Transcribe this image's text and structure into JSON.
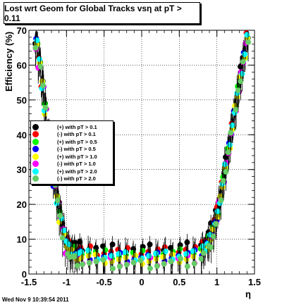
{
  "title": "Lost wrt Geom for Global Tracks vsη at pT > 0.11",
  "date_stamp": "Wed Nov  9 10:39:54 2011",
  "chart_data": {
    "type": "scatter",
    "title": "Lost wrt Geom for Global Tracks vsη at pT > 0.11",
    "xlabel": "η",
    "ylabel": "Efficiency (%)",
    "xlim": [
      -1.5,
      1.5
    ],
    "ylim": [
      0,
      70
    ],
    "grid": true,
    "legend_position": "left",
    "x_ticks": [
      -1.5,
      -1.0,
      -0.5,
      0,
      0.5,
      1.0,
      1.5
    ],
    "x_tick_labels": [
      "-1.5",
      "-1",
      "-0.5",
      "0",
      "0.5",
      "1",
      "1.5"
    ],
    "y_ticks": [
      0,
      10,
      20,
      30,
      40,
      50,
      60,
      70
    ],
    "y_tick_labels": [
      "0",
      "10",
      "20",
      "30",
      "40",
      "50",
      "60",
      "70"
    ],
    "series": [
      {
        "name": "(+) with pT > 0.1",
        "color": "#000000",
        "offset": 0.9,
        "err": 2.4
      },
      {
        "name": "(-) with pT > 0.1",
        "color": "#ff0000",
        "offset": 0.0,
        "err": 2.6
      },
      {
        "name": "(+) with pT > 0.5",
        "color": "#00ff00",
        "offset": -0.8,
        "err": 2.8
      },
      {
        "name": "(-) with pT > 0.5",
        "color": "#0000ff",
        "offset": -1.5,
        "err": 3.0
      },
      {
        "name": "(+) with pT > 1.0",
        "color": "#ffff00",
        "offset": -2.2,
        "err": 3.4
      },
      {
        "name": "(-) with pT > 1.0",
        "color": "#ff00ff",
        "offset": -2.9,
        "err": 3.8
      },
      {
        "name": "(+) with pT > 2.0",
        "color": "#00ffff",
        "offset": -1.2,
        "err": 4.2
      },
      {
        "name": "(-) with pT > 2.0",
        "color": "#66cc66",
        "offset": -3.6,
        "err": 4.6
      }
    ],
    "base_x": [
      -1.4,
      -1.36,
      -1.32,
      -1.28,
      -1.24,
      -1.2,
      -1.16,
      -1.12,
      -1.08,
      -1.04,
      -1.0,
      -0.96,
      -0.92,
      -0.88,
      -0.84,
      -0.8,
      -0.7,
      -0.6,
      -0.5,
      -0.4,
      -0.3,
      -0.2,
      -0.1,
      0.0,
      0.1,
      0.2,
      0.3,
      0.4,
      0.5,
      0.6,
      0.7,
      0.8,
      0.84,
      0.88,
      0.92,
      0.96,
      1.0,
      1.04,
      1.08,
      1.12,
      1.16,
      1.2,
      1.24,
      1.28,
      1.32,
      1.36,
      1.4
    ],
    "base_y": [
      67,
      61,
      55,
      48,
      40,
      33,
      27,
      22,
      17,
      13,
      10,
      8.5,
      8,
      7.5,
      7.2,
      7.0,
      6.8,
      6.6,
      6.5,
      6.4,
      6.4,
      6.3,
      6.3,
      6.3,
      6.4,
      6.5,
      6.5,
      6.6,
      6.8,
      7.0,
      7.2,
      8.0,
      9.0,
      10.5,
      12.5,
      15,
      18,
      22,
      27,
      32,
      37,
      42,
      48,
      53,
      58,
      63,
      68
    ]
  },
  "legend": {
    "entries": [
      {
        "label": "(+) with pT > 0.1",
        "color": "#000000"
      },
      {
        "label": "(-) with pT > 0.1",
        "color": "#ff0000"
      },
      {
        "label": "(+) with pT > 0.5",
        "color": "#00ff00"
      },
      {
        "label": "(-) with pT > 0.5",
        "color": "#0000ff"
      },
      {
        "label": "(+) with pT > 1.0",
        "color": "#ffff00"
      },
      {
        "label": "(-) with pT > 1.0",
        "color": "#ff00ff"
      },
      {
        "label": "(+) with pT > 2.0",
        "color": "#00ffff"
      },
      {
        "label": "(-) with pT > 2.0",
        "color": "#66cc66"
      }
    ]
  }
}
